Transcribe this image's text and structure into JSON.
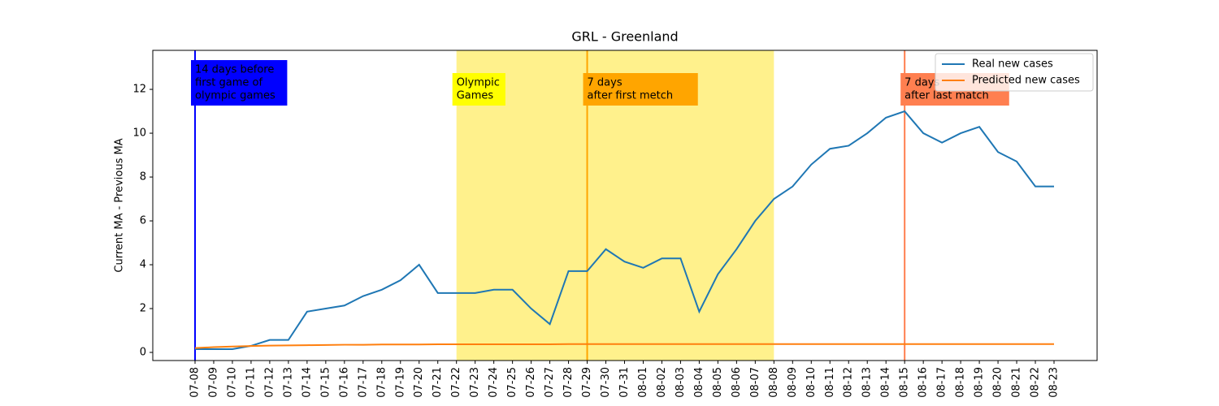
{
  "chart_data": {
    "type": "line",
    "title": "GRL - Greenland",
    "y_label": "Current MA - Previous MA",
    "categories": [
      "07-08",
      "07-09",
      "07-10",
      "07-11",
      "07-12",
      "07-13",
      "07-14",
      "07-15",
      "07-16",
      "07-17",
      "07-18",
      "07-19",
      "07-20",
      "07-21",
      "07-22",
      "07-23",
      "07-24",
      "07-25",
      "07-26",
      "07-27",
      "07-28",
      "07-29",
      "07-30",
      "07-31",
      "08-01",
      "08-02",
      "08-03",
      "08-04",
      "08-05",
      "08-06",
      "08-07",
      "08-08",
      "08-09",
      "08-10",
      "08-11",
      "08-12",
      "08-13",
      "08-14",
      "08-15",
      "08-16",
      "08-17",
      "08-18",
      "08-19",
      "08-20",
      "08-21",
      "08-22",
      "08-23"
    ],
    "series": [
      {
        "name": "Real new cases",
        "color": "#1f77b4",
        "values": [
          0.15,
          0.15,
          0.15,
          0.3,
          0.57,
          0.57,
          1.86,
          2.0,
          2.14,
          2.57,
          2.86,
          3.29,
          4.0,
          2.71,
          2.71,
          2.71,
          2.86,
          2.86,
          2.0,
          1.29,
          3.71,
          3.71,
          4.71,
          4.14,
          3.86,
          4.29,
          4.29,
          1.86,
          3.57,
          4.71,
          6.0,
          7.0,
          7.57,
          8.57,
          9.29,
          9.43,
          10.0,
          10.71,
          11.0,
          10.0,
          9.57,
          10.0,
          10.29,
          9.14,
          8.71,
          7.57,
          7.57
        ]
      },
      {
        "name": "Predicted new cases",
        "color": "#ff7f0e",
        "values": [
          0.2,
          0.24,
          0.27,
          0.29,
          0.31,
          0.32,
          0.33,
          0.34,
          0.35,
          0.35,
          0.36,
          0.36,
          0.36,
          0.37,
          0.37,
          0.37,
          0.37,
          0.37,
          0.37,
          0.37,
          0.38,
          0.38,
          0.38,
          0.38,
          0.38,
          0.38,
          0.38,
          0.38,
          0.38,
          0.38,
          0.38,
          0.38,
          0.38,
          0.38,
          0.38,
          0.38,
          0.38,
          0.38,
          0.38,
          0.38,
          0.38,
          0.38,
          0.38,
          0.38,
          0.38,
          0.38,
          0.38
        ]
      }
    ],
    "ylim": [
      -0.37,
      13.78
    ],
    "yticks": [
      0,
      2,
      4,
      6,
      8,
      10,
      12
    ],
    "legend": "upper right",
    "span": {
      "start": "07-22",
      "end": "08-08",
      "color": "#fff080"
    },
    "events": [
      {
        "x": "07-08",
        "color": "#0000ff",
        "text_color": "#ffffff",
        "lines": [
          "14 days before",
          "first game of",
          "olympic games"
        ]
      },
      {
        "x": "07-22",
        "color": "#ffff00",
        "text_color": "#000000",
        "lines": [
          "Olympic",
          "Games"
        ],
        "no_line": true
      },
      {
        "x": "07-29",
        "color": "#ffa500",
        "text_color": "#000000",
        "lines": [
          "7 days",
          "after first metch"
        ]
      },
      {
        "x": "08-15",
        "color": "#ff7f50",
        "text_color": "#000000",
        "lines": [
          "7 days",
          "after last match"
        ]
      }
    ]
  }
}
